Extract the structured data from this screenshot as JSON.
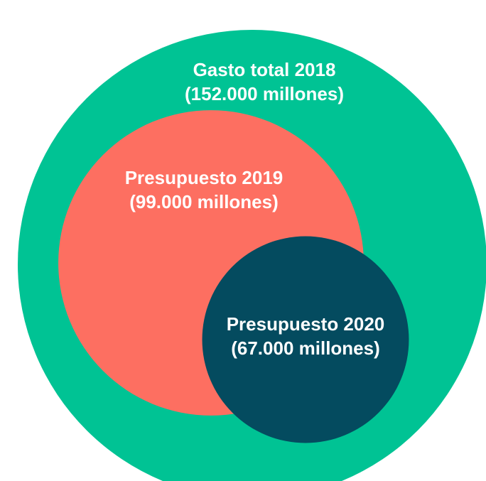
{
  "chart_data": {
    "type": "bubble",
    "categories": [
      "Gasto total 2018",
      "Presupuesto 2019",
      "Presupuesto 2020"
    ],
    "values": [
      152000,
      99000,
      67000
    ],
    "value_labels": [
      "(152.000 millones)",
      "(99.000 millones)",
      "(67.000 millones)"
    ],
    "colors": [
      "#00c394",
      "#fd6f61",
      "#044b5f"
    ]
  }
}
